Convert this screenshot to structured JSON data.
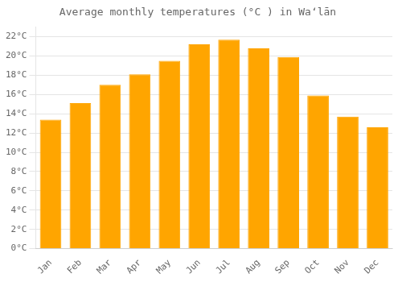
{
  "chart_data": {
    "type": "bar",
    "title": "Average monthly temperatures (°C ) in Waʻlān",
    "categories": [
      "Jan",
      "Feb",
      "Mar",
      "Apr",
      "May",
      "Jun",
      "Jul",
      "Aug",
      "Sep",
      "Oct",
      "Nov",
      "Dec"
    ],
    "values": [
      13.4,
      15.1,
      17.0,
      18.1,
      19.5,
      21.2,
      21.7,
      20.8,
      19.9,
      15.9,
      13.7,
      12.6
    ],
    "color": "#FFA500",
    "ylim": [
      0,
      23
    ],
    "yticks": [
      {
        "value": 0,
        "label": "0°C"
      },
      {
        "value": 2,
        "label": "2°C"
      },
      {
        "value": 4,
        "label": "4°C"
      },
      {
        "value": 6,
        "label": "6°C"
      },
      {
        "value": 8,
        "label": "8°C"
      },
      {
        "value": 10,
        "label": "10°C"
      },
      {
        "value": 12,
        "label": "12°C"
      },
      {
        "value": 14,
        "label": "14°C"
      },
      {
        "value": 16,
        "label": "16°C"
      },
      {
        "value": 18,
        "label": "18°C"
      },
      {
        "value": 20,
        "label": "20°C"
      },
      {
        "value": 22,
        "label": "22°C"
      }
    ],
    "grid": true
  }
}
